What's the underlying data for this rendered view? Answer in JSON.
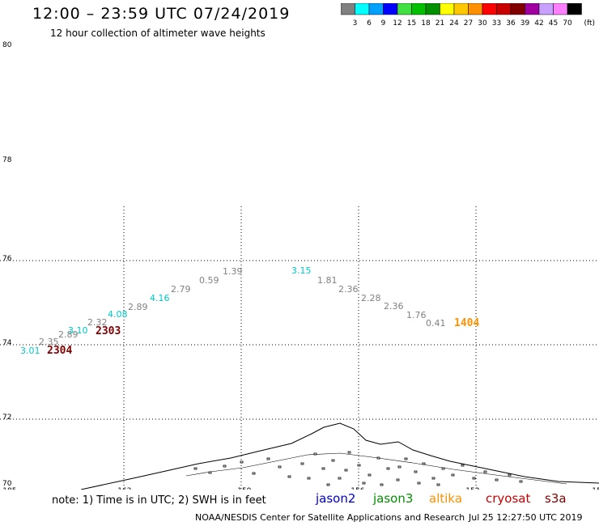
{
  "header": {
    "title": "12:00 – 23:59 UTC 07/24/2019",
    "subtitle": "12 hour collection of altimeter wave heights"
  },
  "colorbar": {
    "unit": "(ft)",
    "bins": [
      {
        "label": "3",
        "color": "#808080"
      },
      {
        "label": "6",
        "color": "#00ffff"
      },
      {
        "label": "9",
        "color": "#00a0ff"
      },
      {
        "label": "12",
        "color": "#0000ff"
      },
      {
        "label": "15",
        "color": "#40e040"
      },
      {
        "label": "18",
        "color": "#00c000"
      },
      {
        "label": "21",
        "color": "#009000"
      },
      {
        "label": "24",
        "color": "#ffff00"
      },
      {
        "label": "27",
        "color": "#ffc800"
      },
      {
        "label": "30",
        "color": "#ff9000"
      },
      {
        "label": "33",
        "color": "#ff0000"
      },
      {
        "label": "36",
        "color": "#c80000"
      },
      {
        "label": "39",
        "color": "#800000"
      },
      {
        "label": "42",
        "color": "#a000a0"
      },
      {
        "label": "45",
        "color": "#c8a0ff"
      },
      {
        "label": "70",
        "color": "#ff80ff"
      },
      {
        "label": "",
        "color": "#000000"
      }
    ]
  },
  "map": {
    "lat_labels": [
      "80",
      "78",
      "76",
      "74",
      "72",
      "70"
    ],
    "lon_labels": [
      "-185",
      "-162",
      "-159",
      "-156",
      "-153",
      "-15"
    ],
    "wave_heights": [
      {
        "value": "3.01",
        "color": "#00c8c8"
      },
      {
        "value": "2.35",
        "color": "#808080"
      },
      {
        "value": "2.89",
        "color": "#808080"
      },
      {
        "value": "3.10",
        "color": "#00c8c8"
      },
      {
        "value": "2.32",
        "color": "#808080"
      },
      {
        "value": "4.08",
        "color": "#00c8c8"
      },
      {
        "value": "2.89",
        "color": "#808080"
      },
      {
        "value": "4.16",
        "color": "#00c8c8"
      },
      {
        "value": "2.79",
        "color": "#808080"
      },
      {
        "value": "0.59",
        "color": "#808080"
      },
      {
        "value": "1.39",
        "color": "#808080"
      },
      {
        "value": "3.15",
        "color": "#00c8c8"
      },
      {
        "value": "1.81",
        "color": "#808080"
      },
      {
        "value": "2.36",
        "color": "#808080"
      },
      {
        "value": "2.28",
        "color": "#808080"
      },
      {
        "value": "2.36",
        "color": "#808080"
      },
      {
        "value": "1.76",
        "color": "#808080"
      },
      {
        "value": "0.41",
        "color": "#808080"
      }
    ],
    "pass_times": [
      {
        "value": "2304",
        "color": "#800000"
      },
      {
        "value": "2303",
        "color": "#800000"
      },
      {
        "value": "1404",
        "color": "#ff9000"
      }
    ]
  },
  "footer": {
    "note": "note:  1) Time is in UTC;  2) SWH is in feet",
    "satellites": [
      {
        "name": "jason2",
        "color": "#0000cc"
      },
      {
        "name": "jason3",
        "color": "#009000"
      },
      {
        "name": "altika",
        "color": "#ff9000"
      },
      {
        "name": "cryosat",
        "color": "#c80000"
      },
      {
        "name": "s3a",
        "color": "#800000"
      }
    ],
    "credit": "NOAA/NESDIS Center for Satellite Applications and Research",
    "timestamp": "Jul 25 12:27:50 UTC 2019"
  }
}
